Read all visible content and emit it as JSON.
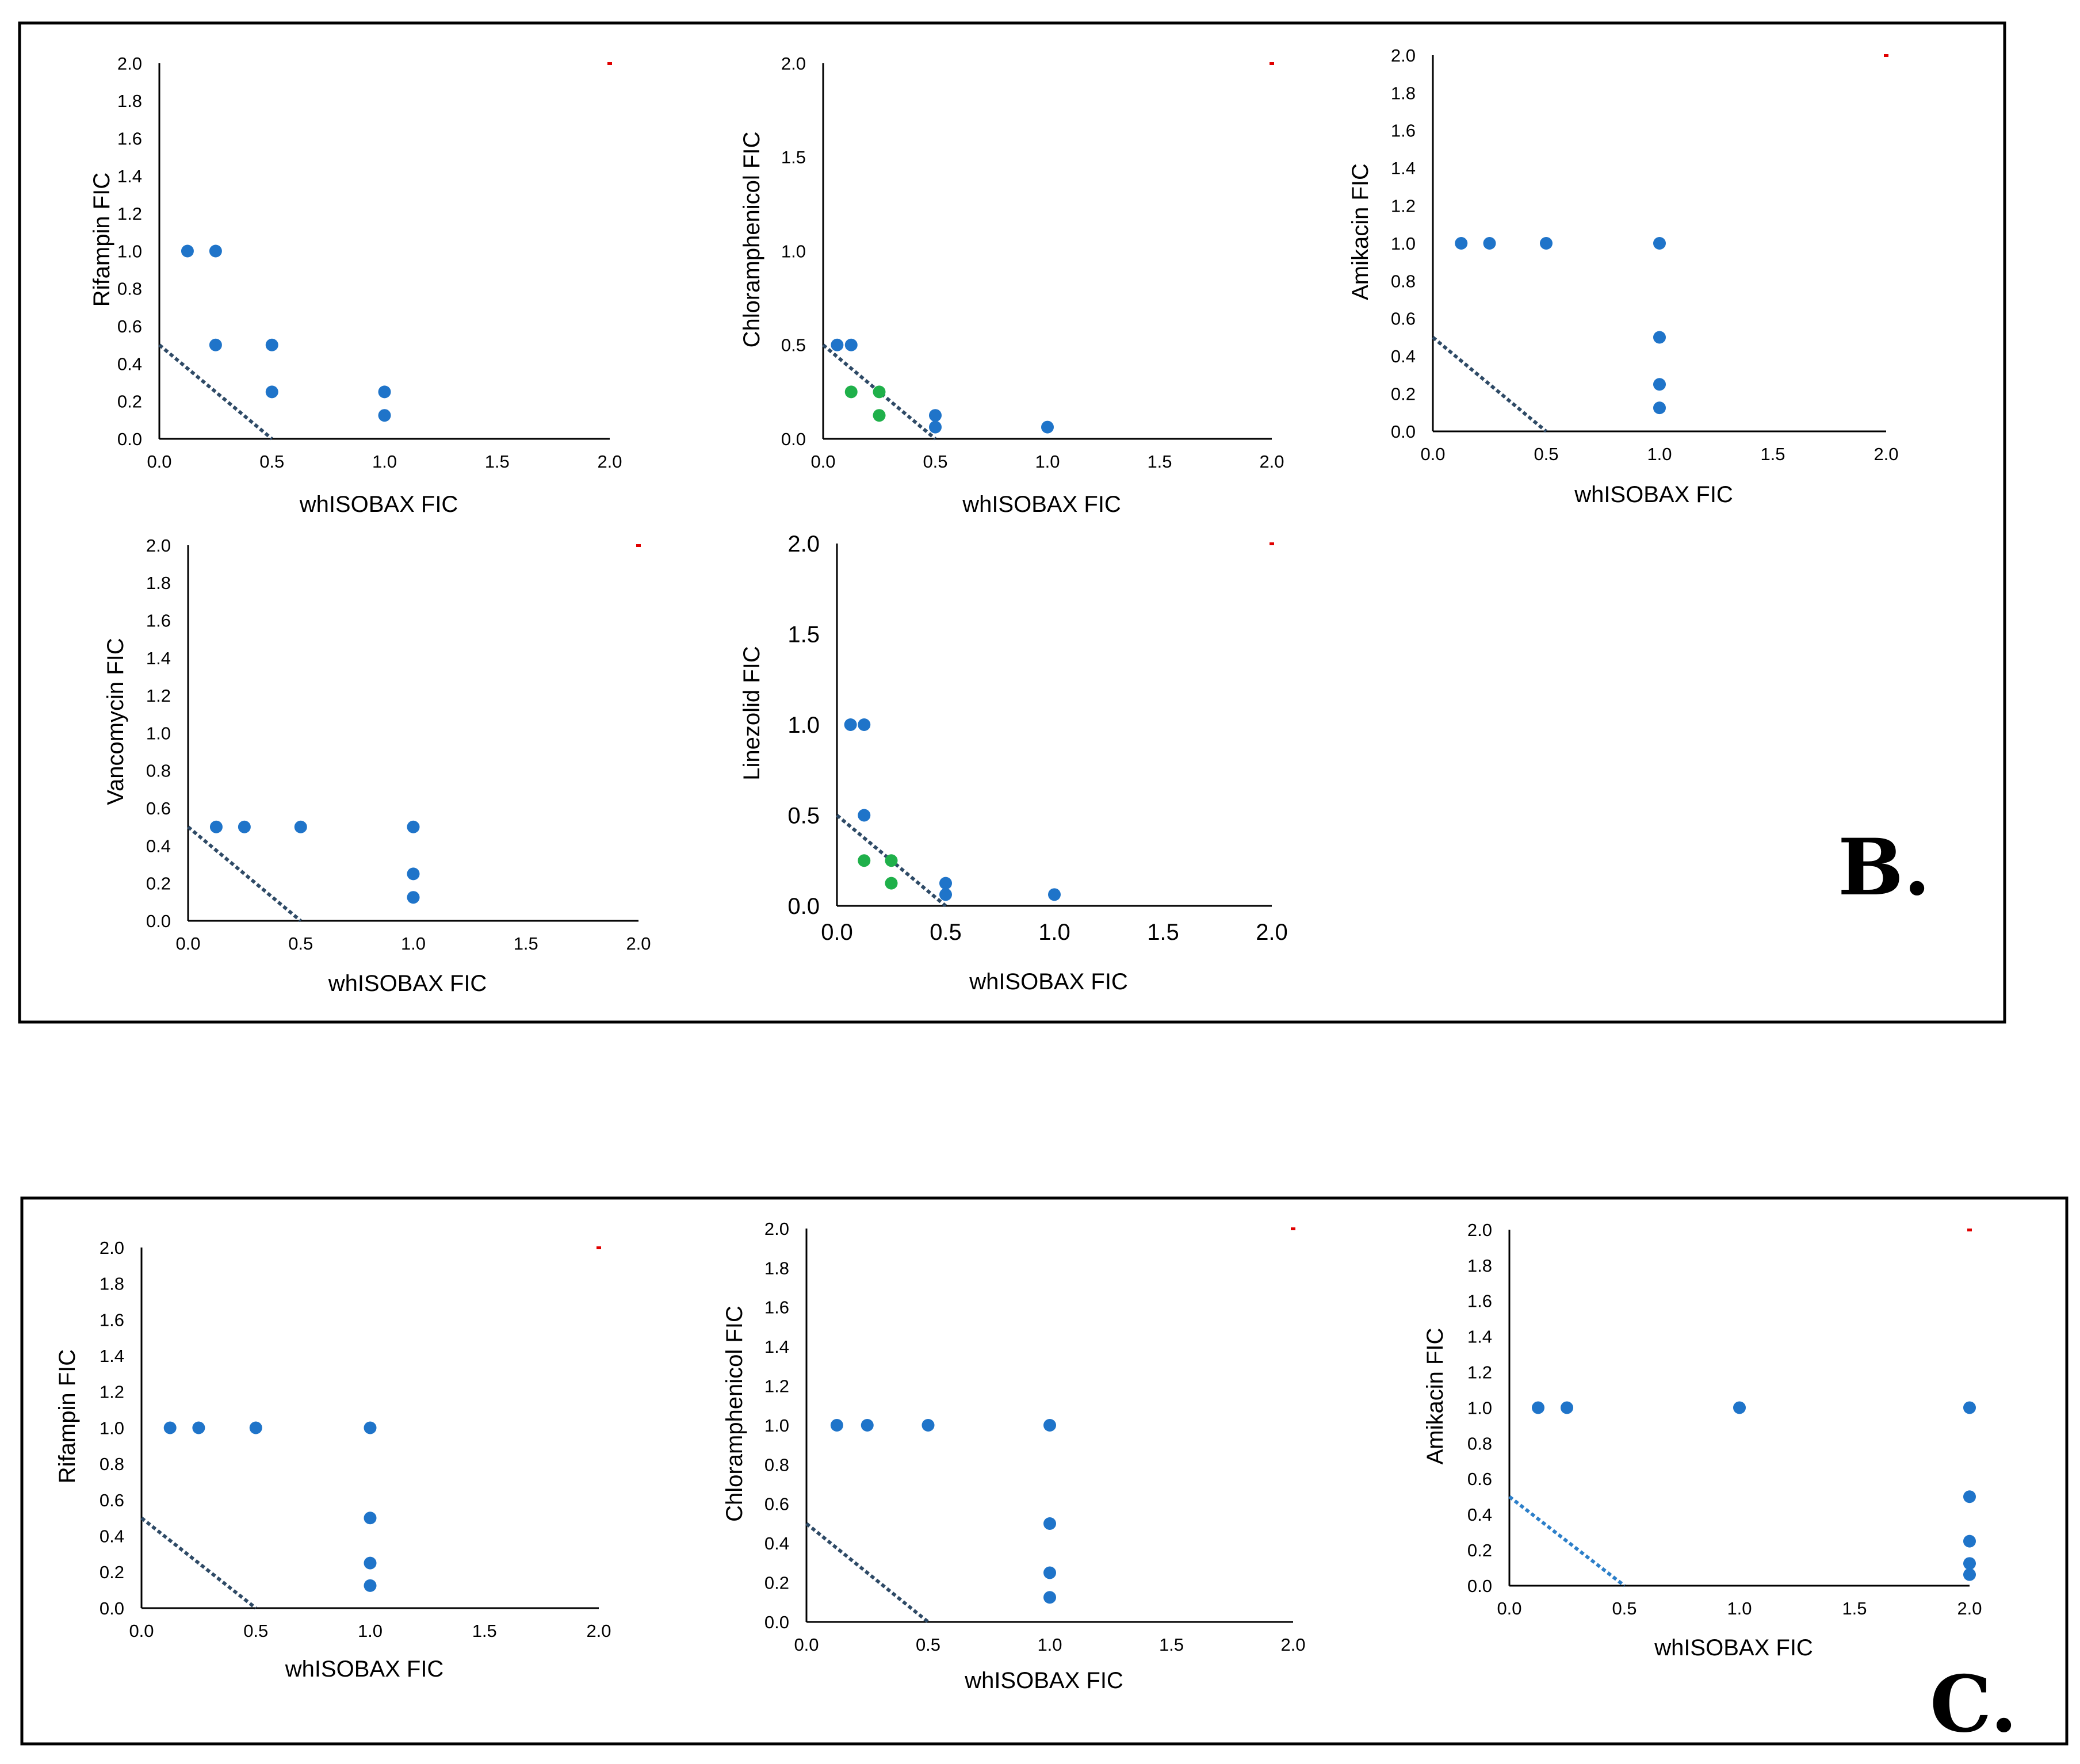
{
  "figure": {
    "panel_labels": [
      "B.",
      "C."
    ],
    "colors": {
      "point_blue": "#1f74c9",
      "point_green": "#1fb04a",
      "additivity_line": "#2e4a66",
      "additivity_line_c3": "#2c7fc9",
      "corner_mark": "#e00000",
      "axis": "#000000",
      "frame": "#000000"
    }
  },
  "chart_data": [
    {
      "id": "B1",
      "panel": "B",
      "type": "scatter",
      "ylabel": "Rifampin  FIC",
      "xlabel": "whISOBAX FIC",
      "xlim": [
        0,
        2
      ],
      "ylim": [
        0,
        2
      ],
      "xticks": [
        "0.0",
        "0.5",
        "1.0",
        "1.5",
        "2.0"
      ],
      "yticks": [
        "0.0",
        "0.2",
        "0.4",
        "0.6",
        "0.8",
        "1.0",
        "1.2",
        "1.4",
        "1.6",
        "1.8",
        "2.0"
      ],
      "additivity_line": [
        [
          0,
          0.5
        ],
        [
          0.5,
          0
        ]
      ],
      "corner_mark": [
        2,
        2
      ],
      "series": [
        {
          "name": "blue",
          "color": "#1f74c9",
          "points": [
            [
              0.125,
              1
            ],
            [
              0.25,
              1
            ],
            [
              0.25,
              0.5
            ],
            [
              0.5,
              0.5
            ],
            [
              0.5,
              0.25
            ],
            [
              1,
              0.25
            ],
            [
              1,
              0.125
            ]
          ]
        }
      ]
    },
    {
      "id": "B2",
      "panel": "B",
      "type": "scatter",
      "ylabel": "Chloramphenicol  FIC",
      "xlabel": "whISOBAX FIC",
      "xlim": [
        0,
        2
      ],
      "ylim": [
        0,
        2
      ],
      "xticks": [
        "0.0",
        "0.5",
        "1.0",
        "1.5",
        "2.0"
      ],
      "yticks": [
        "0.0",
        "0.5",
        "1.0",
        "1.5",
        "2.0"
      ],
      "additivity_line": [
        [
          0,
          0.5
        ],
        [
          0.5,
          0
        ]
      ],
      "corner_mark": [
        2,
        2
      ],
      "series": [
        {
          "name": "blue",
          "color": "#1f74c9",
          "points": [
            [
              0.0625,
              0.5
            ],
            [
              0.125,
              0.5
            ],
            [
              0.5,
              0.125
            ],
            [
              0.5,
              0.0625
            ],
            [
              1,
              0.0625
            ]
          ]
        },
        {
          "name": "synergy",
          "color": "#1fb04a",
          "points": [
            [
              0.125,
              0.25
            ],
            [
              0.25,
              0.25
            ],
            [
              0.25,
              0.125
            ]
          ]
        }
      ]
    },
    {
      "id": "B3",
      "panel": "B",
      "type": "scatter",
      "ylabel": "Amikacin  FIC",
      "xlabel": "whISOBAX  FIC",
      "xlim": [
        0,
        2
      ],
      "ylim": [
        0,
        2
      ],
      "xticks": [
        "0.0",
        "0.5",
        "1.0",
        "1.5",
        "2.0"
      ],
      "yticks": [
        "0.0",
        "0.2",
        "0.4",
        "0.6",
        "0.8",
        "1.0",
        "1.2",
        "1.4",
        "1.6",
        "1.8",
        "2.0"
      ],
      "additivity_line": [
        [
          0,
          0.5
        ],
        [
          0.5,
          0
        ]
      ],
      "corner_mark": [
        2,
        2
      ],
      "series": [
        {
          "name": "blue",
          "color": "#1f74c9",
          "points": [
            [
              0.125,
              1
            ],
            [
              0.25,
              1
            ],
            [
              0.5,
              1
            ],
            [
              1,
              1
            ],
            [
              1,
              0.5
            ],
            [
              1,
              0.25
            ],
            [
              1,
              0.125
            ]
          ]
        }
      ]
    },
    {
      "id": "B4",
      "panel": "B",
      "type": "scatter",
      "ylabel": "Vancomycin  FIC",
      "xlabel": "whISOBAX  FIC",
      "xlim": [
        0,
        2
      ],
      "ylim": [
        0,
        2
      ],
      "xticks": [
        "0.0",
        "0.5",
        "1.0",
        "1.5",
        "2.0"
      ],
      "yticks": [
        "0.0",
        "0.2",
        "0.4",
        "0.6",
        "0.8",
        "1.0",
        "1.2",
        "1.4",
        "1.6",
        "1.8",
        "2.0"
      ],
      "additivity_line": [
        [
          0,
          0.5
        ],
        [
          0.5,
          0
        ]
      ],
      "corner_mark": [
        2,
        2
      ],
      "series": [
        {
          "name": "blue",
          "color": "#1f74c9",
          "points": [
            [
              0.125,
              0.5
            ],
            [
              0.25,
              0.5
            ],
            [
              0.5,
              0.5
            ],
            [
              1,
              0.5
            ],
            [
              1,
              0.25
            ],
            [
              1,
              0.125
            ]
          ]
        }
      ]
    },
    {
      "id": "B5",
      "panel": "B",
      "type": "scatter",
      "ylabel": "Linezolid  FIC",
      "xlabel": "whISOBAX  FIC",
      "xlim": [
        0,
        2
      ],
      "ylim": [
        0,
        2
      ],
      "xticks": [
        "0.0",
        "0.5",
        "1.0",
        "1.5",
        "2.0"
      ],
      "yticks": [
        "0.0",
        "0.5",
        "1.0",
        "1.5",
        "2.0"
      ],
      "additivity_line": [
        [
          0,
          0.5
        ],
        [
          0.5,
          0
        ]
      ],
      "corner_mark": [
        2,
        2
      ],
      "series": [
        {
          "name": "blue",
          "color": "#1f74c9",
          "points": [
            [
              0.0625,
              1
            ],
            [
              0.125,
              1
            ],
            [
              0.125,
              0.5
            ],
            [
              0.5,
              0.125
            ],
            [
              0.5,
              0.0625
            ],
            [
              1,
              0.0625
            ]
          ]
        },
        {
          "name": "synergy",
          "color": "#1fb04a",
          "points": [
            [
              0.125,
              0.25
            ],
            [
              0.25,
              0.25
            ],
            [
              0.25,
              0.125
            ]
          ]
        }
      ]
    },
    {
      "id": "C1",
      "panel": "C",
      "type": "scatter",
      "ylabel": "Rifampin  FIC",
      "xlabel": "whISOBAX  FIC",
      "xlim": [
        0,
        2
      ],
      "ylim": [
        0,
        2
      ],
      "xticks": [
        "0.0",
        "0.5",
        "1.0",
        "1.5",
        "2.0"
      ],
      "yticks": [
        "0.0",
        "0.2",
        "0.4",
        "0.6",
        "0.8",
        "1.0",
        "1.2",
        "1.4",
        "1.6",
        "1.8",
        "2.0"
      ],
      "additivity_line": [
        [
          0,
          0.5
        ],
        [
          0.5,
          0
        ]
      ],
      "corner_mark": [
        2,
        2
      ],
      "series": [
        {
          "name": "blue",
          "color": "#1f74c9",
          "points": [
            [
              0.125,
              1
            ],
            [
              0.25,
              1
            ],
            [
              0.5,
              1
            ],
            [
              1,
              1
            ],
            [
              1,
              0.5
            ],
            [
              1,
              0.25
            ],
            [
              1,
              0.125
            ]
          ]
        }
      ]
    },
    {
      "id": "C2",
      "panel": "C",
      "type": "scatter",
      "ylabel": "Chloramphenicol  FIC",
      "xlabel": "whISOBAX  FIC",
      "xlim": [
        0,
        2
      ],
      "ylim": [
        0,
        2
      ],
      "xticks": [
        "0.0",
        "0.5",
        "1.0",
        "1.5",
        "2.0"
      ],
      "yticks": [
        "0.0",
        "0.2",
        "0.4",
        "0.6",
        "0.8",
        "1.0",
        "1.2",
        "1.4",
        "1.6",
        "1.8",
        "2.0"
      ],
      "additivity_line": [
        [
          0,
          0.5
        ],
        [
          0.5,
          0
        ]
      ],
      "corner_mark": [
        2,
        2
      ],
      "series": [
        {
          "name": "blue",
          "color": "#1f74c9",
          "points": [
            [
              0.125,
              1
            ],
            [
              0.25,
              1
            ],
            [
              0.5,
              1
            ],
            [
              1,
              1
            ],
            [
              1,
              0.5
            ],
            [
              1,
              0.25
            ],
            [
              1,
              0.125
            ]
          ]
        }
      ]
    },
    {
      "id": "C3",
      "panel": "C",
      "type": "scatter",
      "ylabel": "Amikacin  FIC",
      "xlabel": "whISOBAX  FIC",
      "xlim": [
        0,
        2
      ],
      "ylim": [
        0,
        2
      ],
      "xticks": [
        "0.0",
        "0.5",
        "1.0",
        "1.5",
        "2.0"
      ],
      "yticks": [
        "0.0",
        "0.2",
        "0.4",
        "0.6",
        "0.8",
        "1.0",
        "1.2",
        "1.4",
        "1.6",
        "1.8",
        "2.0"
      ],
      "additivity_line": [
        [
          0,
          0.5
        ],
        [
          0.5,
          0
        ]
      ],
      "corner_mark": [
        2,
        2
      ],
      "series": [
        {
          "name": "blue",
          "color": "#1f74c9",
          "points": [
            [
              0.125,
              1
            ],
            [
              0.25,
              1
            ],
            [
              1,
              1
            ],
            [
              2,
              1
            ],
            [
              2,
              0.5
            ],
            [
              2,
              0.25
            ],
            [
              2,
              0.125
            ],
            [
              2,
              0.0625
            ]
          ]
        }
      ]
    }
  ]
}
